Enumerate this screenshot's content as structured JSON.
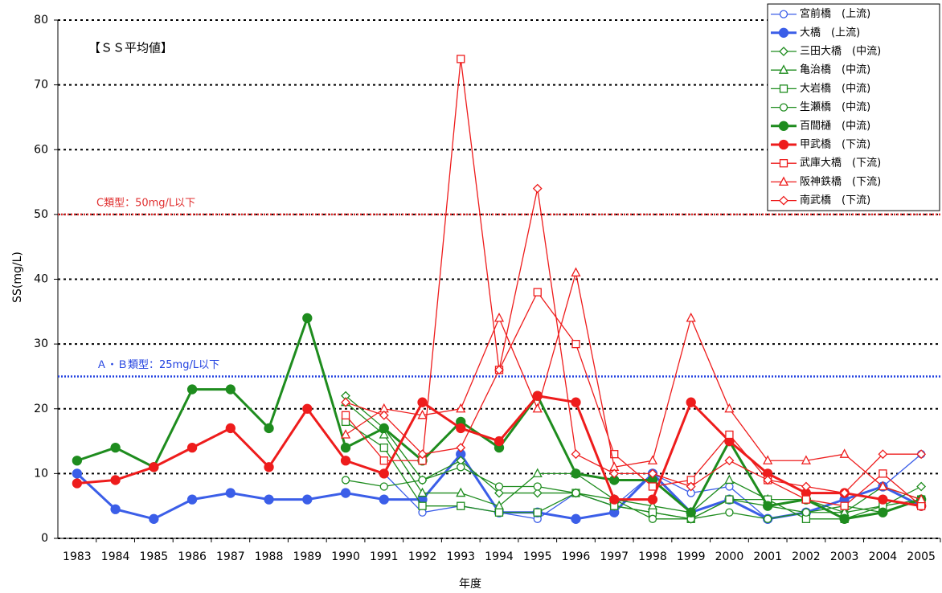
{
  "chart_data": {
    "type": "line",
    "annotation": "【ＳＳ平均値】",
    "x_label": "年度",
    "y_label": "SS(mg/L)",
    "categories": [
      "1983",
      "1984",
      "1985",
      "1986",
      "1987",
      "1988",
      "1989",
      "1990",
      "1991",
      "1992",
      "1993",
      "1994",
      "1995",
      "1996",
      "1997",
      "1998",
      "1999",
      "2000",
      "2001",
      "2002",
      "2003",
      "2004",
      "2005"
    ],
    "ylim": [
      0,
      80
    ],
    "yticks": [
      0,
      10,
      20,
      30,
      40,
      50,
      60,
      70,
      80
    ],
    "grid": true,
    "legend": "top-right",
    "reference_lines": [
      {
        "value": 50,
        "label": "C類型：50mg/L以下",
        "color": "#e03030"
      },
      {
        "value": 25,
        "label": "Ａ・Ｂ類型：25mg/L以下",
        "color": "#2040e0"
      }
    ],
    "series": [
      {
        "name": "宮前橋　(上流)",
        "color": "#3b5ee8",
        "marker": "circle",
        "filled": false,
        "values": [
          null,
          null,
          null,
          null,
          null,
          null,
          null,
          null,
          10,
          4,
          5,
          4,
          3,
          7,
          5,
          10,
          7,
          8,
          3,
          4,
          6,
          8,
          13
        ]
      },
      {
        "name": "大橋　(上流)",
        "color": "#3b5ee8",
        "marker": "circle",
        "filled": true,
        "values": [
          10,
          4.5,
          3,
          6,
          7,
          6,
          6,
          7,
          6,
          6,
          13,
          4,
          4,
          3,
          4,
          10,
          4,
          6,
          3,
          4,
          6,
          8,
          5
        ]
      },
      {
        "name": "三田大橋　(中流)",
        "color": "#1e8c1e",
        "marker": "diamond",
        "filled": false,
        "values": [
          null,
          null,
          null,
          null,
          null,
          null,
          null,
          22,
          17,
          9,
          12,
          7,
          7,
          7,
          5,
          4,
          3,
          6,
          5,
          4,
          4,
          5,
          8
        ]
      },
      {
        "name": "亀治橋　(中流)",
        "color": "#1e8c1e",
        "marker": "triangle",
        "filled": false,
        "values": [
          null,
          null,
          null,
          null,
          null,
          null,
          null,
          21,
          16,
          7,
          7,
          5,
          10,
          10,
          6,
          5,
          4,
          9,
          6,
          6,
          4,
          8,
          6
        ]
      },
      {
        "name": "大岩橋　(中流)",
        "color": "#1e8c1e",
        "marker": "square",
        "filled": false,
        "values": [
          null,
          null,
          null,
          null,
          null,
          null,
          null,
          18,
          14,
          5,
          5,
          4,
          4,
          7,
          5,
          4,
          3,
          6,
          6,
          3,
          3,
          5,
          6
        ]
      },
      {
        "name": "生瀬橋　(中流)",
        "color": "#1e8c1e",
        "marker": "circle",
        "filled": false,
        "values": [
          null,
          null,
          null,
          null,
          null,
          null,
          null,
          9,
          8,
          9,
          11,
          8,
          8,
          7,
          6,
          3,
          3,
          4,
          3,
          4,
          5,
          4,
          6
        ]
      },
      {
        "name": "百間樋　(中流)",
        "color": "#1e8c1e",
        "marker": "circle",
        "filled": true,
        "values": [
          12,
          14,
          11,
          23,
          23,
          17,
          34,
          14,
          17,
          12,
          18,
          14,
          22,
          10,
          9,
          9,
          4,
          15,
          5,
          6,
          3,
          4,
          6
        ]
      },
      {
        "name": "甲武橋　(下流)",
        "color": "#ee1c1c",
        "marker": "circle",
        "filled": true,
        "values": [
          8.5,
          9,
          11,
          14,
          17,
          11,
          20,
          12,
          10,
          21,
          17,
          15,
          22,
          21,
          6,
          6,
          21,
          15,
          10,
          7,
          7,
          6,
          5
        ]
      },
      {
        "name": "武庫大橋　(下流)",
        "color": "#ee1c1c",
        "marker": "square",
        "filled": false,
        "values": [
          null,
          null,
          null,
          null,
          null,
          null,
          null,
          19,
          12,
          12,
          74,
          26,
          38,
          30,
          13,
          8,
          9,
          16,
          9,
          6,
          5,
          10,
          5
        ]
      },
      {
        "name": "阪神鉄橋　(下流)",
        "color": "#ee1c1c",
        "marker": "triangle",
        "filled": false,
        "values": [
          null,
          null,
          null,
          null,
          null,
          null,
          null,
          16,
          20,
          19,
          20,
          34,
          20,
          41,
          11,
          12,
          34,
          20,
          12,
          12,
          13,
          8,
          6
        ]
      },
      {
        "name": "南武橋　(下流)",
        "color": "#ee1c1c",
        "marker": "diamond",
        "filled": false,
        "values": [
          null,
          null,
          null,
          null,
          null,
          null,
          null,
          21,
          19,
          13,
          14,
          26,
          54,
          13,
          10,
          10,
          8,
          12,
          9,
          8,
          7,
          13,
          13
        ]
      }
    ]
  }
}
